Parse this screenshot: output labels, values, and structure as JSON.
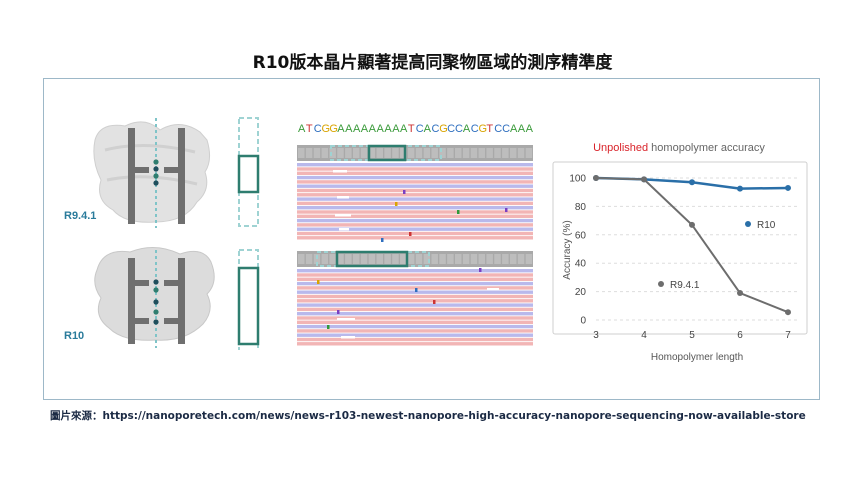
{
  "figure": {
    "title": "R10版本晶片顯著提高同聚物區域的測序精準度",
    "source": "圖片來源：https://nanoporetech.com/news/news-r103-newest-nanopore-high-accuracy-nanopore-sequencing-now-available-store"
  },
  "pores": [
    {
      "label": "R9.4.1"
    },
    {
      "label": "R10"
    }
  ],
  "sequence": {
    "bases": [
      "A",
      "T",
      "C",
      "G",
      "G",
      "A",
      "A",
      "A",
      "A",
      "A",
      "A",
      "A",
      "A",
      "A",
      "T",
      "C",
      "A",
      "C",
      "G",
      "C",
      "C",
      "A",
      "C",
      "G",
      "T",
      "C",
      "C",
      "A",
      "A",
      "A"
    ],
    "colors": {
      "A": "#3a9a3a",
      "T": "#cc3333",
      "C": "#2f6fbf",
      "G": "#d9a400"
    }
  },
  "chart_data": {
    "type": "line",
    "title_highlight": "Unpolished",
    "title_rest": " homopolymer accuracy",
    "title_highlight_color": "#d9232a",
    "xlabel": "Homopolymer length",
    "ylabel": "Accuracy (%)",
    "x": [
      3,
      4,
      5,
      6,
      7
    ],
    "xlim": [
      3,
      7
    ],
    "ylim": [
      0,
      100
    ],
    "yticks": [
      0,
      20,
      40,
      60,
      80,
      100
    ],
    "grid": "horizontal dashed",
    "series": [
      {
        "name": "R10",
        "color": "#2a6fa8",
        "values": [
          100,
          99,
          97,
          92.5,
          93
        ]
      },
      {
        "name": "R9.4.1",
        "color": "#6d6d6d",
        "values": [
          100,
          99,
          67,
          19,
          5.5
        ]
      }
    ]
  }
}
